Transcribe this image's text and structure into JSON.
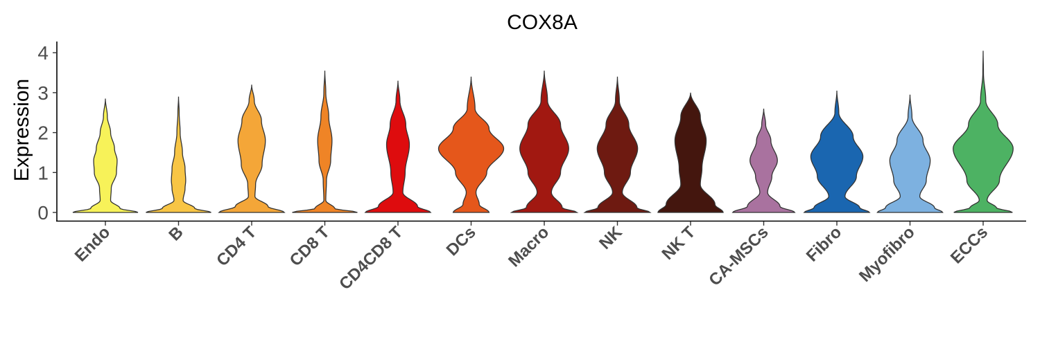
{
  "chart_data": {
    "type": "violin",
    "title": "COX8A",
    "xlabel": "",
    "ylabel": "Expression",
    "ylim": [
      -0.2,
      4.3
    ],
    "yticks": [
      0,
      1,
      2,
      3,
      4
    ],
    "grid": false,
    "legend": "none",
    "series": [
      {
        "name": "Endo",
        "color": "#F7F259",
        "max": 2.85,
        "density": [
          [
            0,
            1
          ],
          [
            0.1,
            0.45
          ],
          [
            0.3,
            0.16
          ],
          [
            0.6,
            0.18
          ],
          [
            1.0,
            0.34
          ],
          [
            1.3,
            0.36
          ],
          [
            1.6,
            0.28
          ],
          [
            2.0,
            0.16
          ],
          [
            2.4,
            0.06
          ],
          [
            2.85,
            0
          ]
        ]
      },
      {
        "name": "B",
        "color": "#F8C545",
        "max": 2.9,
        "density": [
          [
            0,
            1
          ],
          [
            0.1,
            0.5
          ],
          [
            0.3,
            0.14
          ],
          [
            0.6,
            0.2
          ],
          [
            0.8,
            0.22
          ],
          [
            1.1,
            0.2
          ],
          [
            1.5,
            0.12
          ],
          [
            2.0,
            0.05
          ],
          [
            2.5,
            0.02
          ],
          [
            2.9,
            0
          ]
        ]
      },
      {
        "name": "CD4 T",
        "color": "#F4A638",
        "max": 3.2,
        "density": [
          [
            0,
            1
          ],
          [
            0.15,
            0.5
          ],
          [
            0.4,
            0.1
          ],
          [
            0.7,
            0.12
          ],
          [
            1.2,
            0.32
          ],
          [
            1.8,
            0.42
          ],
          [
            2.3,
            0.3
          ],
          [
            2.8,
            0.08
          ],
          [
            3.2,
            0
          ]
        ]
      },
      {
        "name": "CD8 T",
        "color": "#EF8426",
        "max": 3.55,
        "density": [
          [
            0,
            1
          ],
          [
            0.1,
            0.3
          ],
          [
            0.3,
            0.03
          ],
          [
            0.8,
            0.05
          ],
          [
            1.3,
            0.18
          ],
          [
            1.8,
            0.22
          ],
          [
            2.4,
            0.12
          ],
          [
            3.0,
            0.03
          ],
          [
            3.55,
            0
          ]
        ]
      },
      {
        "name": "CD4CD8 T",
        "color": "#DE0C0E",
        "max": 3.3,
        "density": [
          [
            0,
            1
          ],
          [
            0.15,
            0.6
          ],
          [
            0.5,
            0.15
          ],
          [
            1.0,
            0.22
          ],
          [
            1.7,
            0.35
          ],
          [
            2.2,
            0.24
          ],
          [
            2.8,
            0.06
          ],
          [
            3.3,
            0
          ]
        ]
      },
      {
        "name": "DCs",
        "color": "#E5571B",
        "max": 3.4,
        "density": [
          [
            0,
            0.55
          ],
          [
            0.2,
            0.25
          ],
          [
            0.5,
            0.15
          ],
          [
            1.0,
            0.48
          ],
          [
            1.6,
            1.0
          ],
          [
            2.1,
            0.55
          ],
          [
            2.6,
            0.12
          ],
          [
            3.4,
            0
          ]
        ]
      },
      {
        "name": "Macro",
        "color": "#A11811",
        "max": 3.55,
        "density": [
          [
            0,
            1
          ],
          [
            0.12,
            0.55
          ],
          [
            0.5,
            0.22
          ],
          [
            1.0,
            0.5
          ],
          [
            1.6,
            0.75
          ],
          [
            2.2,
            0.5
          ],
          [
            2.8,
            0.1
          ],
          [
            3.55,
            0
          ]
        ]
      },
      {
        "name": "NK",
        "color": "#6E1A11",
        "max": 3.4,
        "density": [
          [
            0,
            1
          ],
          [
            0.12,
            0.6
          ],
          [
            0.5,
            0.15
          ],
          [
            1.0,
            0.4
          ],
          [
            1.6,
            0.62
          ],
          [
            2.2,
            0.35
          ],
          [
            2.8,
            0.06
          ],
          [
            3.4,
            0
          ]
        ]
      },
      {
        "name": "NK T",
        "color": "#44160E",
        "max": 3.0,
        "density": [
          [
            0,
            1
          ],
          [
            0.2,
            0.75
          ],
          [
            0.7,
            0.3
          ],
          [
            1.1,
            0.35
          ],
          [
            1.8,
            0.48
          ],
          [
            2.4,
            0.3
          ],
          [
            3.0,
            0
          ]
        ]
      },
      {
        "name": "CA-MSCs",
        "color": "#A9729F",
        "max": 2.6,
        "density": [
          [
            0,
            0.95
          ],
          [
            0.15,
            0.5
          ],
          [
            0.5,
            0.12
          ],
          [
            0.9,
            0.25
          ],
          [
            1.3,
            0.42
          ],
          [
            1.8,
            0.22
          ],
          [
            2.2,
            0.06
          ],
          [
            2.6,
            0
          ]
        ]
      },
      {
        "name": "Fibro",
        "color": "#1A66B0",
        "max": 3.05,
        "density": [
          [
            0,
            1
          ],
          [
            0.12,
            0.7
          ],
          [
            0.4,
            0.25
          ],
          [
            0.9,
            0.6
          ],
          [
            1.4,
            0.8
          ],
          [
            1.9,
            0.5
          ],
          [
            2.5,
            0.06
          ],
          [
            3.05,
            0
          ]
        ]
      },
      {
        "name": "Myofibro",
        "color": "#7DB1E0",
        "max": 2.95,
        "density": [
          [
            0,
            1
          ],
          [
            0.12,
            0.75
          ],
          [
            0.4,
            0.3
          ],
          [
            0.8,
            0.5
          ],
          [
            1.3,
            0.62
          ],
          [
            1.8,
            0.4
          ],
          [
            2.4,
            0.06
          ],
          [
            2.95,
            0
          ]
        ]
      },
      {
        "name": "ECCs",
        "color": "#4DB263",
        "max": 4.05,
        "density": [
          [
            0,
            0.9
          ],
          [
            0.12,
            0.4
          ],
          [
            0.3,
            0.12
          ],
          [
            0.8,
            0.5
          ],
          [
            1.6,
            0.92
          ],
          [
            2.2,
            0.45
          ],
          [
            2.8,
            0.08
          ],
          [
            3.5,
            0.01
          ],
          [
            4.05,
            0
          ]
        ]
      }
    ]
  }
}
